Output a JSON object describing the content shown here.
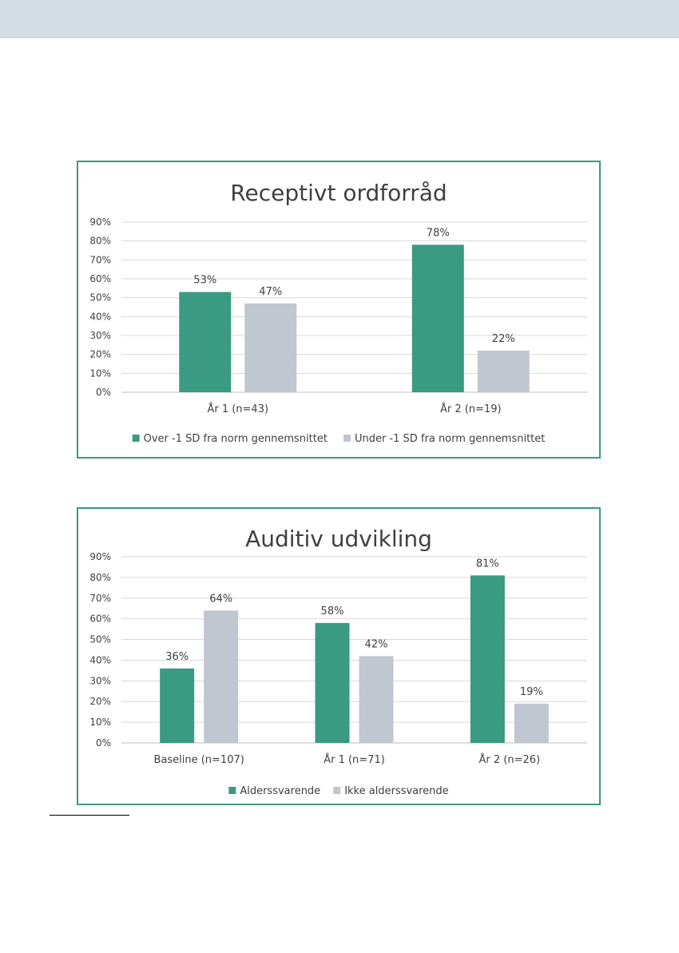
{
  "colors": {
    "series_primary": "#3a9a82",
    "series_secondary": "#c1c7d0",
    "frame_border": "#3a9a82",
    "top_band": "#d3dde3",
    "gridline": "#d9d9d9",
    "text": "#404040"
  },
  "chart_data": [
    {
      "type": "bar",
      "title": "Receptivt ordforråd",
      "categories": [
        "År 1 (n=43)",
        "År 2 (n=19)"
      ],
      "series": [
        {
          "name": "Over -1 SD fra norm gennemsnittet",
          "values": [
            53,
            78
          ],
          "labels": [
            "53%",
            "78%"
          ]
        },
        {
          "name": "Under -1 SD fra norm gennemsnittet",
          "values": [
            47,
            22
          ],
          "labels": [
            "47%",
            "22%"
          ]
        }
      ],
      "ylim": [
        0,
        90
      ],
      "yticks": [
        "0%",
        "10%",
        "20%",
        "30%",
        "40%",
        "50%",
        "60%",
        "70%",
        "80%",
        "90%"
      ],
      "grid": true,
      "legend": "bottom"
    },
    {
      "type": "bar",
      "title": "Auditiv udvikling",
      "categories": [
        "Baseline (n=107)",
        "År 1 (n=71)",
        "År 2 (n=26)"
      ],
      "series": [
        {
          "name": "Alderssvarende",
          "values": [
            36,
            58,
            81
          ],
          "labels": [
            "36%",
            "58%",
            "81%"
          ]
        },
        {
          "name": "Ikke alderssvarende",
          "values": [
            64,
            42,
            19
          ],
          "labels": [
            "64%",
            "42%",
            "19%"
          ]
        }
      ],
      "ylim": [
        0,
        90
      ],
      "yticks": [
        "0%",
        "10%",
        "20%",
        "30%",
        "40%",
        "50%",
        "60%",
        "70%",
        "80%",
        "90%"
      ],
      "grid": true,
      "legend": "bottom"
    }
  ]
}
